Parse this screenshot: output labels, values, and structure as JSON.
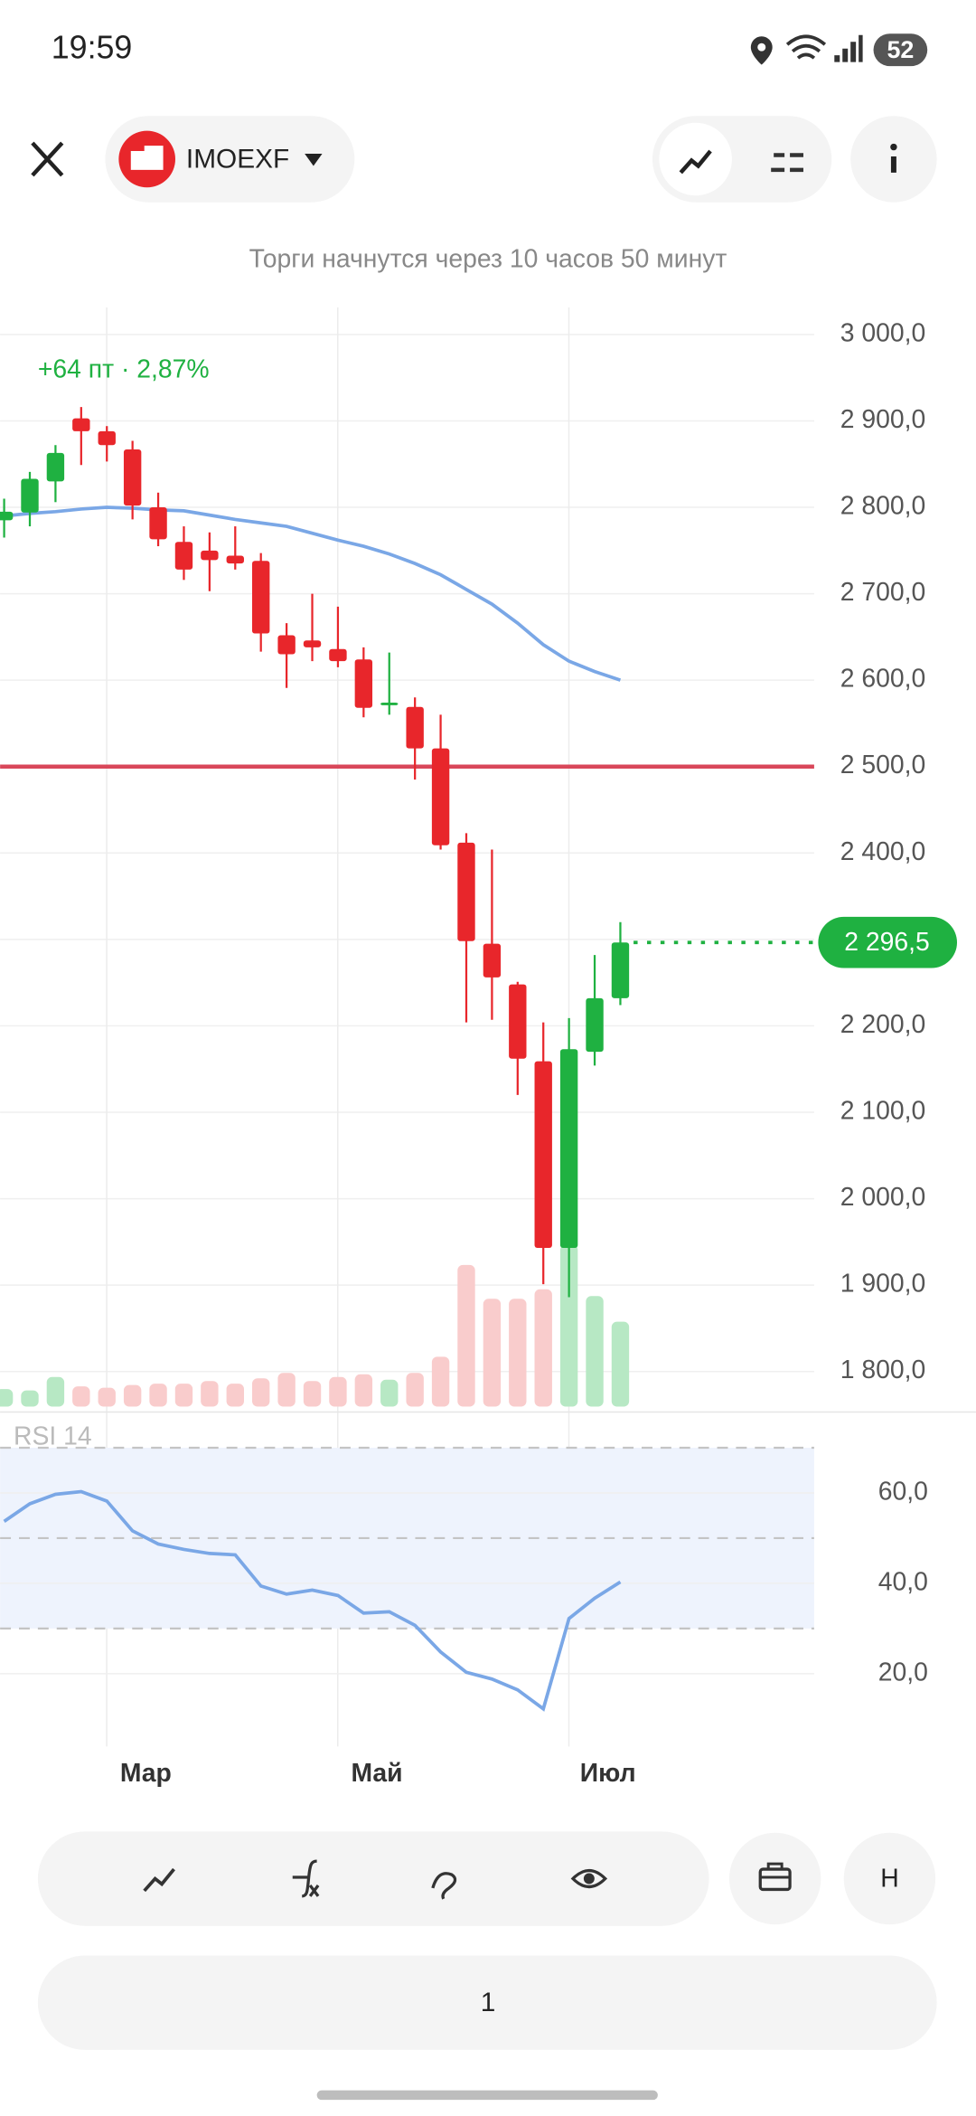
{
  "status_bar": {
    "time": "19:59",
    "battery": "52"
  },
  "header": {
    "ticker": "IMOEXF"
  },
  "notice": "Торги начнутся через 10 часов 50 минут",
  "chart_data": [
    {
      "type": "candlestick",
      "annotation": "+64 пт · 2,87%",
      "categories": [
        null,
        null,
        "Мар",
        null,
        null,
        null,
        null,
        null,
        null,
        null,
        null,
        "Май",
        null,
        null,
        null,
        null,
        null,
        null,
        null,
        null,
        "Июл",
        null,
        null,
        null,
        null
      ],
      "open": [
        2785,
        2794,
        2830,
        2903,
        2888,
        2867,
        2800,
        2760,
        2750,
        2744,
        2738,
        2652,
        2646,
        2636,
        2624,
        2571,
        2569,
        2521,
        2412,
        2295,
        2248,
        2159,
        1943,
        2170,
        2232
      ],
      "high": [
        2810,
        2841,
        2872,
        2916,
        2894,
        2877,
        2817,
        2778,
        2771,
        2778,
        2747,
        2666,
        2700,
        2685,
        2638,
        2632,
        2580,
        2560,
        2423,
        2404,
        2251,
        2204,
        2209,
        2282,
        2320
      ],
      "low": [
        2765,
        2778,
        2806,
        2849,
        2853,
        2786,
        2755,
        2716,
        2703,
        2728,
        2633,
        2591,
        2622,
        2615,
        2557,
        2560,
        2485,
        2404,
        2204,
        2207,
        2120,
        1901,
        1886,
        2154,
        2224
      ],
      "close": [
        2795,
        2833,
        2863,
        2888,
        2872,
        2802,
        2763,
        2728,
        2739,
        2735,
        2654,
        2630,
        2638,
        2622,
        2568,
        2574,
        2521,
        2409,
        2298,
        2256,
        2162,
        1943,
        2173,
        2232,
        2296.5
      ],
      "volume": [
        13,
        12,
        22,
        15,
        14,
        16,
        17,
        17,
        19,
        17,
        21,
        25,
        19,
        22,
        24,
        20,
        25,
        37,
        105,
        80,
        80,
        87,
        120,
        82,
        63
      ],
      "up_color": "#1fb141",
      "down_color": "#e8262b",
      "volume_up_color": "#b7e8c4",
      "volume_down_color": "#f9cccc",
      "ma": {
        "color": "#7aa7e6",
        "values": [
          2790,
          2793,
          2795,
          2798,
          2800,
          2799,
          2797,
          2796,
          2791,
          2786,
          2782,
          2778,
          2770,
          2762,
          2755,
          2746,
          2735,
          2722,
          2705,
          2688,
          2666,
          2641,
          2622,
          2610,
          2600
        ]
      },
      "hline": {
        "value": 2500,
        "color": "#d9475a"
      },
      "last_value": {
        "value": 2296.5,
        "label": "2 296,5"
      },
      "ylim": [
        1760,
        3030
      ],
      "yticks": [
        {
          "value": 1800,
          "label": "1 800,0"
        },
        {
          "value": 1900,
          "label": "1 900,0"
        },
        {
          "value": 2000,
          "label": "2 000,0"
        },
        {
          "value": 2100,
          "label": "2 100,0"
        },
        {
          "value": 2200,
          "label": "2 200,0"
        },
        {
          "value": 2300,
          "label": "2 300,0"
        },
        {
          "value": 2400,
          "label": "2 400,0"
        },
        {
          "value": 2500,
          "label": "2 500,0"
        },
        {
          "value": 2600,
          "label": "2 600,0"
        },
        {
          "value": 2700,
          "label": "2 700,0"
        },
        {
          "value": 2800,
          "label": "2 800,0"
        },
        {
          "value": 2900,
          "label": "2 900,0"
        },
        {
          "value": 3000,
          "label": "3 000,0"
        }
      ],
      "grid": true
    },
    {
      "type": "line",
      "title": "RSI 14",
      "values": [
        53.7,
        57.6,
        59.7,
        60.3,
        58.2,
        51.6,
        48.7,
        47.5,
        46.6,
        46.3,
        39.4,
        37.6,
        38.5,
        37.3,
        33.4,
        33.7,
        30.7,
        24.8,
        20.3,
        18.8,
        16.4,
        12.2,
        32.2,
        36.7,
        40.3
      ],
      "color": "#7aa7e6",
      "bands": [
        30,
        50,
        70
      ],
      "band_color": "#eef3fd",
      "ylim": [
        5,
        77
      ],
      "yticks": [
        {
          "value": 20,
          "label": "20,0"
        },
        {
          "value": 40,
          "label": "40,0"
        },
        {
          "value": 60,
          "label": "60,0"
        }
      ],
      "grid": true
    }
  ],
  "toolbar": {
    "mode": "Н",
    "quantity": "1"
  }
}
